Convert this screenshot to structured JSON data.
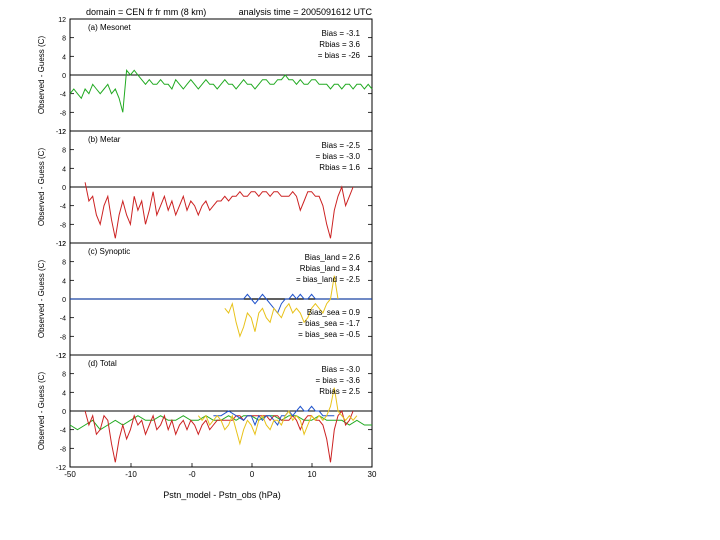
{
  "header": {
    "domain_label": "domain = CEN  fr fr mm (8 km)",
    "time_label": "analysis time = 2005091612 UTC"
  },
  "xaxis": {
    "label": "Pstn_model - Pstn_obs (hPa)",
    "ticks": [
      "-50",
      "-10",
      "-0",
      "0",
      "10",
      "30"
    ]
  },
  "yaxis": {
    "label": "Observed - Guess (C)",
    "ticks": [
      "12",
      "8",
      "4",
      "0",
      "-4",
      "-8",
      "-12"
    ]
  },
  "colors": {
    "mesonet": "#22aa22",
    "metar": "#cc2222",
    "synoptic_land": "#2255cc",
    "synoptic_sea": "#e8c21a",
    "zero_line": "#000000"
  },
  "chart_data": [
    {
      "type": "line",
      "panel_label": "(a) Mesonet",
      "stats": [
        "Bias = -3.1",
        "Rbias = 3.6",
        "= bias = -26"
      ],
      "series": [
        {
          "key": "mesonet",
          "x": [
            -50,
            -49,
            -48,
            -47,
            -46,
            -45,
            -44,
            -43,
            -42,
            -41,
            -40,
            -39,
            -38,
            -37,
            -36,
            -35,
            -34,
            -33,
            -32,
            -31,
            -30,
            -29,
            -28,
            -27,
            -26,
            -25,
            -24,
            -23,
            -22,
            -21,
            -20,
            -19,
            -18,
            -17,
            -16,
            -15,
            -14,
            -13,
            -12,
            -11,
            -10,
            -9,
            -8,
            -7,
            -6,
            -5,
            -4,
            -3,
            -2,
            -1,
            0,
            1,
            2,
            3,
            4,
            5,
            6,
            7,
            8,
            9,
            10,
            11,
            12,
            13,
            14,
            15,
            16,
            17,
            18,
            19,
            20,
            21,
            22,
            23,
            24,
            25,
            26,
            27,
            28,
            29,
            30
          ],
          "y": [
            -4,
            -3,
            -4,
            -5,
            -3,
            -4,
            -2,
            -3,
            -4,
            -3,
            -2,
            -4,
            -3,
            -5,
            -8,
            1,
            0,
            1,
            0,
            -1,
            -2,
            -1,
            -2,
            -2,
            -1,
            -2,
            -2,
            -3,
            -1,
            -2,
            -3,
            -2,
            -1,
            -2,
            -3,
            -2,
            -1,
            -2,
            -2,
            -3,
            -2,
            -1,
            -2,
            -2,
            -3,
            -2,
            -1,
            -2,
            -2,
            -3,
            -2,
            -1,
            -1,
            -2,
            -2,
            -1,
            -1,
            0,
            -1,
            -1,
            -2,
            -1,
            -2,
            -2,
            -1,
            -1,
            -2,
            -2,
            -2,
            -3,
            -2,
            -2,
            -3,
            -2,
            -2,
            -3,
            -2,
            -2,
            -3,
            -2,
            -3
          ]
        }
      ]
    },
    {
      "type": "line",
      "panel_label": "(b) Metar",
      "stats": [
        "Bias = -2.5",
        "= bias = -3.0",
        "Rbias = 1.6"
      ],
      "series": [
        {
          "key": "metar",
          "x": [
            -46,
            -45,
            -44,
            -43,
            -42,
            -41,
            -40,
            -39,
            -38,
            -37,
            -36,
            -35,
            -34,
            -33,
            -32,
            -31,
            -30,
            -29,
            -28,
            -27,
            -26,
            -25,
            -24,
            -23,
            -22,
            -21,
            -20,
            -19,
            -18,
            -17,
            -16,
            -15,
            -14,
            -13,
            -12,
            -11,
            -10,
            -9,
            -8,
            -7,
            -6,
            -5,
            -4,
            -3,
            -2,
            -1,
            0,
            1,
            2,
            3,
            4,
            5,
            6,
            7,
            8,
            9,
            10,
            11,
            12,
            13,
            14,
            15,
            16,
            17,
            18,
            19,
            20,
            21,
            22,
            23,
            24,
            25
          ],
          "y": [
            1,
            -3,
            -2,
            -6,
            -8,
            -4,
            -2,
            -7,
            -11,
            -6,
            -3,
            -6,
            -8,
            -2,
            -5,
            -3,
            -8,
            -5,
            -1,
            -6,
            -4,
            -2,
            -5,
            -3,
            -6,
            -4,
            -2,
            -5,
            -3,
            -4,
            -6,
            -4,
            -3,
            -5,
            -4,
            -3,
            -3,
            -2,
            -3,
            -2,
            -2,
            -1,
            -2,
            -2,
            -1,
            -1,
            -2,
            -1,
            -1,
            -2,
            -1,
            -1,
            -2,
            -2,
            -2,
            -1,
            -2,
            -5,
            -3,
            -1,
            -1,
            -2,
            -2,
            -4,
            -8,
            -11,
            -5,
            -2,
            0,
            -4,
            -2,
            0
          ]
        }
      ]
    },
    {
      "type": "line",
      "panel_label": "(c) Synoptic",
      "stats": [
        "Bias_land = 2.6",
        "Rbias_land = 3.4",
        "= bias_land = -2.5",
        "Bias_sea = 0.9",
        "= bias_sea = -1.7",
        "= bias_sea = -0.5"
      ],
      "series": [
        {
          "key": "zero_line",
          "x": [
            -50,
            30
          ],
          "y": [
            0,
            0
          ]
        },
        {
          "key": "synoptic_land",
          "x": [
            -50,
            -45,
            -40,
            -35,
            -30,
            -25,
            -20,
            -15,
            -10,
            -8,
            -6,
            -4,
            -3,
            -2,
            -1,
            0,
            1,
            2,
            3,
            4,
            5,
            6,
            7,
            8,
            9,
            10,
            11,
            12,
            13,
            14,
            15,
            16,
            17,
            18,
            19,
            20,
            25,
            30
          ],
          "y": [
            0,
            0,
            0,
            0,
            0,
            0,
            0,
            0,
            0,
            0,
            0,
            0,
            1,
            0,
            -1,
            0,
            1,
            0,
            -1,
            -2,
            -3,
            -1,
            0,
            0,
            1,
            0,
            1,
            0,
            0,
            1,
            0,
            0,
            0,
            0,
            0,
            0,
            0,
            0
          ]
        },
        {
          "key": "synoptic_sea",
          "x": [
            -9,
            -8,
            -7,
            -6,
            -5,
            -4,
            -3,
            -2,
            -1,
            0,
            1,
            2,
            3,
            4,
            5,
            6,
            7,
            8,
            9,
            10,
            11,
            12,
            13,
            14,
            15,
            16,
            17,
            18,
            19,
            20,
            21
          ],
          "y": [
            -2,
            -3,
            -1,
            -5,
            -8,
            -6,
            -3,
            -4,
            -7,
            -3,
            -2,
            -4,
            -5,
            -2,
            -3,
            -4,
            -2,
            -1,
            -3,
            -2,
            -3,
            -5,
            -4,
            -2,
            -1,
            -2,
            -3,
            -1,
            0,
            5,
            0
          ]
        }
      ]
    },
    {
      "type": "line",
      "panel_label": "(d) Total",
      "stats": [
        "Bias = -3.0",
        "= bias = -3.6",
        "Rbias = 2.5"
      ],
      "series": [
        {
          "key": "mesonet",
          "x": [
            -50,
            -48,
            -46,
            -44,
            -42,
            -40,
            -38,
            -36,
            -34,
            -32,
            -30,
            -28,
            -26,
            -24,
            -22,
            -20,
            -18,
            -16,
            -14,
            -12,
            -10,
            -8,
            -6,
            -4,
            -2,
            0,
            2,
            4,
            6,
            8,
            10,
            12,
            14,
            16,
            18,
            20,
            22,
            24,
            26,
            28,
            30
          ],
          "y": [
            -3,
            -4,
            -3,
            -2,
            -4,
            -3,
            -2,
            -3,
            -2,
            -1,
            -2,
            -2,
            -1,
            -2,
            -2,
            -1,
            -2,
            -2,
            -1,
            -2,
            -2,
            -1,
            -2,
            -1,
            -1,
            -2,
            -1,
            -1,
            -2,
            -1,
            -1,
            -2,
            -2,
            -1,
            -2,
            -2,
            -2,
            -3,
            -2,
            -3,
            -3
          ]
        },
        {
          "key": "metar",
          "x": [
            -46,
            -45,
            -44,
            -43,
            -42,
            -41,
            -40,
            -39,
            -38,
            -37,
            -36,
            -35,
            -34,
            -33,
            -32,
            -31,
            -30,
            -29,
            -28,
            -27,
            -26,
            -25,
            -24,
            -23,
            -22,
            -21,
            -20,
            -19,
            -18,
            -17,
            -16,
            -15,
            -14,
            -13,
            -12,
            -11,
            -10,
            -9,
            -8,
            -7,
            -6,
            -5,
            -4,
            -3,
            -2,
            -1,
            0,
            1,
            2,
            3,
            4,
            5,
            6,
            7,
            8,
            9,
            10,
            11,
            12,
            13,
            14,
            15,
            16,
            17,
            18,
            19,
            20,
            21,
            22,
            23,
            24,
            25
          ],
          "y": [
            0,
            -3,
            -1,
            -5,
            -4,
            -1,
            -2,
            -7,
            -11,
            -6,
            -3,
            -6,
            -4,
            -1,
            -3,
            -2,
            -5,
            -3,
            -1,
            -4,
            -3,
            -1,
            -4,
            -2,
            -5,
            -3,
            -2,
            -4,
            -2,
            -3,
            -5,
            -3,
            -2,
            -4,
            -3,
            -2,
            -2,
            -2,
            -2,
            -2,
            -1,
            -1,
            -2,
            -1,
            -1,
            -1,
            -1,
            -1,
            -1,
            -2,
            -1,
            -1,
            -2,
            -2,
            -2,
            -1,
            -2,
            -4,
            -2,
            -1,
            -1,
            -2,
            -2,
            -3,
            -6,
            -11,
            -4,
            -1,
            0,
            -3,
            -2,
            0
          ]
        },
        {
          "key": "synoptic_land",
          "x": [
            -12,
            -10,
            -8,
            -6,
            -4,
            -3,
            -2,
            -1,
            0,
            1,
            2,
            3,
            4,
            5,
            6,
            7,
            8,
            9,
            10,
            11,
            12,
            13,
            14,
            15,
            16,
            17,
            18,
            19,
            20
          ],
          "y": [
            -1,
            -1,
            0,
            -1,
            -2,
            -1,
            -1,
            -3,
            -1,
            -2,
            -1,
            -1,
            -2,
            -3,
            -1,
            -1,
            0,
            -1,
            0,
            1,
            0,
            0,
            1,
            0,
            0,
            -1,
            -1,
            -1,
            -1
          ]
        },
        {
          "key": "synoptic_sea",
          "x": [
            -16,
            -15,
            -14,
            -13,
            -12,
            -11,
            -10,
            -9,
            -8,
            -7,
            -6,
            -5,
            -4,
            -3,
            -2,
            -1,
            0,
            1,
            2,
            3,
            4,
            5,
            6,
            7,
            8,
            9,
            10,
            11,
            12,
            13,
            14,
            15,
            16,
            17,
            18,
            19,
            20,
            21,
            22,
            23,
            24,
            25,
            26
          ],
          "y": [
            -1,
            -2,
            -1,
            -3,
            -2,
            -1,
            -2,
            -4,
            -3,
            -1,
            -4,
            -7,
            -4,
            -2,
            -3,
            -5,
            -2,
            -1,
            -3,
            -4,
            -2,
            -2,
            -3,
            -1,
            0,
            -2,
            -1,
            -2,
            -5,
            -3,
            -1,
            -2,
            -1,
            -2,
            -1,
            1,
            5,
            0,
            -1,
            -2,
            -1,
            -2,
            -1
          ]
        }
      ]
    }
  ]
}
